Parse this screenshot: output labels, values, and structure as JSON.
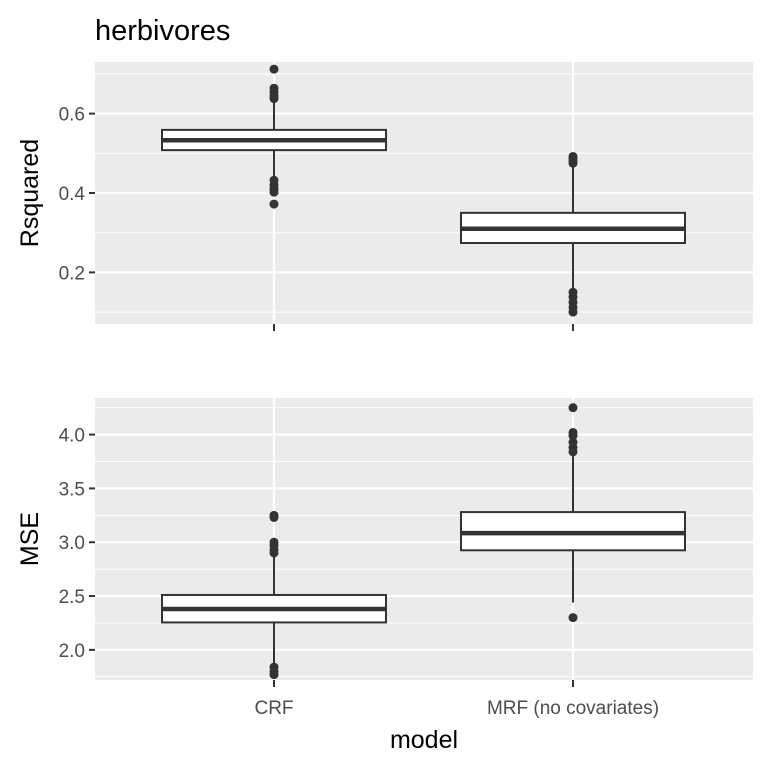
{
  "chart_data": {
    "type": "boxplot",
    "title": "herbivores",
    "xlabel": "model",
    "categories": [
      "CRF",
      "MRF (no covariates)"
    ],
    "grid": true,
    "legend": "none",
    "colors": {
      "panel_bg": "#ebebeb",
      "grid_major": "#ffffff",
      "box_fill": "#ffffff",
      "box_line": "#333333",
      "outlier": "#333333",
      "axis_text": "#4d4d4d",
      "title_text": "#000000"
    },
    "panels": [
      {
        "ylabel": "Rsquared",
        "ylim": [
          0.07,
          0.73
        ],
        "yticks": [
          0.2,
          0.4,
          0.6
        ],
        "ytick_labels": [
          "0.2",
          "0.4",
          "0.6"
        ],
        "boxes": [
          {
            "category": "CRF",
            "whisker_low": 0.44,
            "q1": 0.508,
            "median": 0.533,
            "q3": 0.559,
            "whisker_high": 0.63,
            "outliers": [
              0.712,
              0.664,
              0.655,
              0.645,
              0.638,
              0.432,
              0.42,
              0.41,
              0.402,
              0.372
            ]
          },
          {
            "category": "MRF (no covariates)",
            "whisker_low": 0.16,
            "q1": 0.274,
            "median": 0.31,
            "q3": 0.35,
            "whisker_high": 0.465,
            "outliers": [
              0.492,
              0.487,
              0.481,
              0.475,
              0.15,
              0.138,
              0.125,
              0.112,
              0.1
            ]
          }
        ]
      },
      {
        "ylabel": "MSE",
        "ylim": [
          1.72,
          4.34
        ],
        "yticks": [
          2.0,
          2.5,
          3.0,
          3.5,
          4.0
        ],
        "ytick_labels": [
          "2.0",
          "2.5",
          "3.0",
          "3.5",
          "4.0"
        ],
        "boxes": [
          {
            "category": "CRF",
            "whisker_low": 1.87,
            "q1": 2.255,
            "median": 2.38,
            "q3": 2.51,
            "whisker_high": 2.87,
            "outliers": [
              3.25,
              3.23,
              3.0,
              2.97,
              2.93,
              2.9,
              1.84,
              1.8,
              1.77
            ]
          },
          {
            "category": "MRF (no covariates)",
            "whisker_low": 2.44,
            "q1": 2.925,
            "median": 3.085,
            "q3": 3.28,
            "whisker_high": 3.8,
            "outliers": [
              4.25,
              4.02,
              3.99,
              3.93,
              3.88,
              3.84,
              2.3
            ]
          }
        ]
      }
    ]
  }
}
